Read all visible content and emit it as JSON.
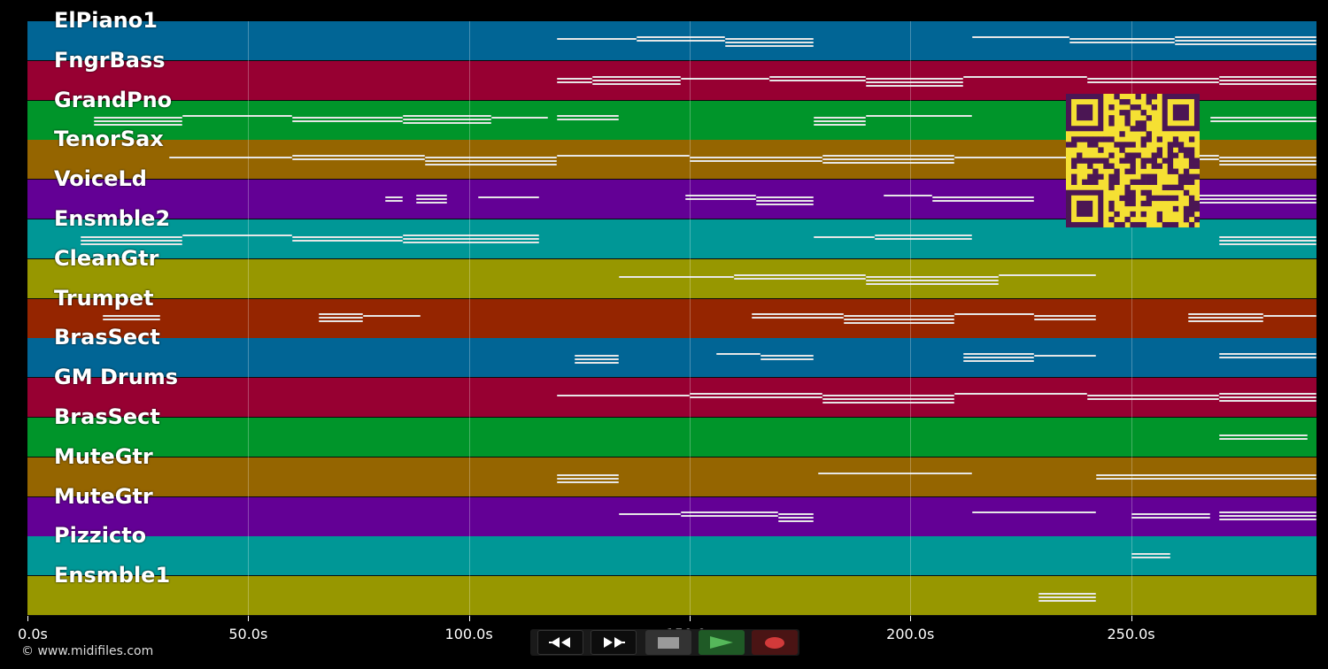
{
  "app": {
    "copyright": "© www.midifiles.com"
  },
  "timeline": {
    "unit": "s",
    "range": [
      0,
      292
    ],
    "ticks": [
      {
        "value": 0,
        "label": "0.0s"
      },
      {
        "value": 50,
        "label": "50.0s"
      },
      {
        "value": 100,
        "label": "100.0s"
      },
      {
        "value": 150,
        "label": "150.0s"
      },
      {
        "value": 200,
        "label": "200.0s"
      },
      {
        "value": 250,
        "label": "250.0s"
      }
    ]
  },
  "tracks": [
    {
      "name": "ElPiano1",
      "color": "#016595"
    },
    {
      "name": "FngrBass",
      "color": "#970032"
    },
    {
      "name": "GrandPno",
      "color": "#00952a"
    },
    {
      "name": "TenorSax",
      "color": "#956500"
    },
    {
      "name": "VoiceLd",
      "color": "#630095"
    },
    {
      "name": "Ensmble2",
      "color": "#009796"
    },
    {
      "name": "CleanGtr",
      "color": "#979700"
    },
    {
      "name": "Trumpet",
      "color": "#952500"
    },
    {
      "name": "BrasSect",
      "color": "#016595"
    },
    {
      "name": "GM Drums",
      "color": "#970032"
    },
    {
      "name": "BrasSect",
      "color": "#00952a"
    },
    {
      "name": "MuteGtr",
      "color": "#956500"
    },
    {
      "name": "MuteGtr",
      "color": "#630095"
    },
    {
      "name": "Pizzicto",
      "color": "#009796"
    },
    {
      "name": "Ensmble1",
      "color": "#979700"
    }
  ],
  "notes": [
    [
      [
        120,
        138
      ],
      [
        138,
        158
      ],
      [
        158,
        178
      ],
      [
        214,
        236
      ],
      [
        236,
        260
      ],
      [
        260,
        292
      ]
    ],
    [
      [
        120,
        128
      ],
      [
        128,
        148
      ],
      [
        148,
        168
      ],
      [
        168,
        190
      ],
      [
        190,
        212
      ],
      [
        212,
        240
      ],
      [
        240,
        270
      ],
      [
        270,
        292
      ]
    ],
    [
      [
        15,
        35
      ],
      [
        35,
        60
      ],
      [
        60,
        85
      ],
      [
        85,
        105
      ],
      [
        105,
        118
      ],
      [
        120,
        134
      ],
      [
        178,
        190
      ],
      [
        190,
        214
      ],
      [
        268,
        292
      ]
    ],
    [
      [
        32,
        60
      ],
      [
        60,
        90
      ],
      [
        90,
        120
      ],
      [
        120,
        150
      ],
      [
        150,
        180
      ],
      [
        180,
        210
      ],
      [
        210,
        240
      ],
      [
        240,
        270
      ],
      [
        270,
        292
      ]
    ],
    [
      [
        81,
        85
      ],
      [
        88,
        95
      ],
      [
        102,
        116
      ],
      [
        149,
        165
      ],
      [
        165,
        178
      ],
      [
        194,
        205
      ],
      [
        205,
        228
      ],
      [
        262,
        292
      ]
    ],
    [
      [
        12,
        35
      ],
      [
        35,
        60
      ],
      [
        60,
        85
      ],
      [
        85,
        116
      ],
      [
        178,
        192
      ],
      [
        192,
        214
      ],
      [
        270,
        292
      ]
    ],
    [
      [
        134,
        160
      ],
      [
        160,
        190
      ],
      [
        190,
        220
      ],
      [
        220,
        242
      ]
    ],
    [
      [
        17,
        30
      ],
      [
        66,
        76
      ],
      [
        76,
        89
      ],
      [
        164,
        185
      ],
      [
        185,
        210
      ],
      [
        210,
        228
      ],
      [
        228,
        242
      ],
      [
        263,
        280
      ],
      [
        280,
        292
      ]
    ],
    [
      [
        124,
        134
      ],
      [
        156,
        166
      ],
      [
        166,
        178
      ],
      [
        212,
        228
      ],
      [
        228,
        242
      ],
      [
        270,
        292
      ]
    ],
    [
      [
        120,
        150
      ],
      [
        150,
        180
      ],
      [
        180,
        210
      ],
      [
        210,
        240
      ],
      [
        240,
        270
      ],
      [
        270,
        292
      ]
    ],
    [
      [
        270,
        290
      ]
    ],
    [
      [
        120,
        134
      ],
      [
        179,
        214
      ],
      [
        242,
        292
      ]
    ],
    [
      [
        134,
        148
      ],
      [
        148,
        170
      ],
      [
        170,
        178
      ],
      [
        214,
        242
      ],
      [
        250,
        268
      ],
      [
        270,
        292
      ]
    ],
    [
      [
        250,
        259
      ]
    ],
    [
      [
        229,
        242
      ]
    ]
  ],
  "transport": {
    "rewind": {
      "icon": "rewind-icon"
    },
    "forward": {
      "icon": "fast-forward-icon"
    },
    "stop": {
      "icon": "stop-icon",
      "color": "#9a9a9a"
    },
    "play": {
      "icon": "play-icon",
      "color": "#55b85a"
    },
    "record": {
      "icon": "record-icon",
      "color": "#d23a3a"
    }
  },
  "overlay": {
    "qr_color_bg": "#f5e033",
    "qr_color_fg": "#4b1654"
  }
}
